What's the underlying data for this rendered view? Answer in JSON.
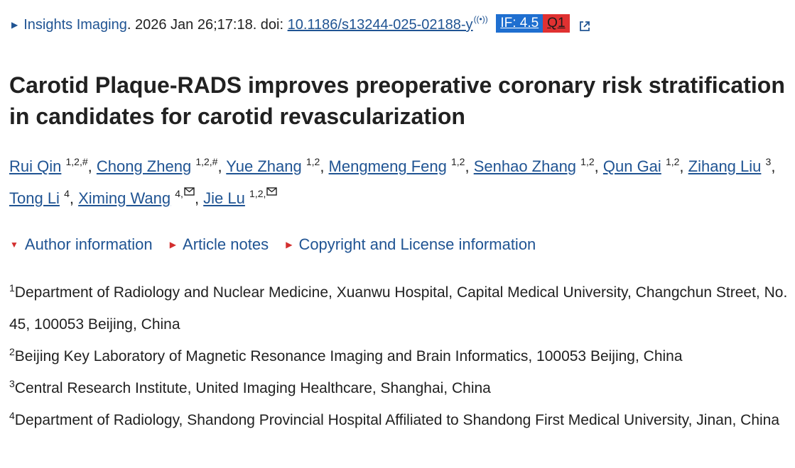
{
  "citation": {
    "journal": "Insights Imaging",
    "details": ". 2026 Jan 26;17:18. doi: ",
    "doi": "10.1186/s13244-025-02188-y",
    "impact_factor": "IF: 4.5",
    "quartile": "Q1"
  },
  "title": "Carotid Plaque-RADS improves preoperative coronary risk stratification in candidates for carotid revascularization",
  "authors": [
    {
      "name": "Rui Qin",
      "sup": "1,2,#"
    },
    {
      "name": "Chong Zheng",
      "sup": "1,2,#"
    },
    {
      "name": "Yue Zhang",
      "sup": "1,2"
    },
    {
      "name": "Mengmeng Feng",
      "sup": "1,2"
    },
    {
      "name": "Senhao Zhang",
      "sup": "1,2"
    },
    {
      "name": "Qun Gai",
      "sup": "1,2"
    },
    {
      "name": "Zihang Liu",
      "sup": "3"
    },
    {
      "name": "Tong Li",
      "sup": "4"
    },
    {
      "name": "Ximing Wang",
      "sup": "4,"
    },
    {
      "name": "Jie Lu",
      "sup": "1,2,"
    }
  ],
  "toggles": [
    "Author information",
    "Article notes",
    "Copyright and License information"
  ],
  "affiliations": [
    {
      "num": "1",
      "text": "Department of Radiology and Nuclear Medicine, Xuanwu Hospital, Capital Medical University, Changchun Street, No. 45, 100053 Beijing, China"
    },
    {
      "num": "2",
      "text": "Beijing Key Laboratory of Magnetic Resonance Imaging and Brain Informatics, 100053 Beijing, China"
    },
    {
      "num": "3",
      "text": "Central Research Institute, United Imaging Healthcare, Shanghai, China"
    },
    {
      "num": "4",
      "text": "Department of Radiology, Shandong Provincial Hospital Affiliated to Shandong First Medical University, Jinan, China"
    }
  ],
  "colors": {
    "link": "#205493",
    "if_badge": "#1f6fd0",
    "q_badge": "#e03131",
    "toggle_triangle": "#d32f2f"
  }
}
